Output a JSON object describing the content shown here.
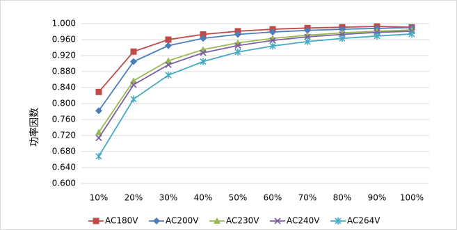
{
  "chart_data": {
    "type": "line",
    "title": "",
    "xlabel": "",
    "ylabel": "功率因数",
    "categories": [
      "10%",
      "20%",
      "30%",
      "40%",
      "50%",
      "60%",
      "70%",
      "80%",
      "90%",
      "100%"
    ],
    "ylim": [
      0.6,
      1.0
    ],
    "yticks": [
      "0.600",
      "0.640",
      "0.680",
      "0.720",
      "0.760",
      "0.800",
      "0.840",
      "0.880",
      "0.920",
      "0.960",
      "1.000"
    ],
    "grid": true,
    "legend_position": "bottom",
    "series": [
      {
        "name": "AC180V",
        "color": "#BE4B48",
        "marker": "square",
        "values": [
          0.829,
          0.93,
          0.96,
          0.973,
          0.981,
          0.986,
          0.989,
          0.991,
          0.993,
          0.991
        ]
      },
      {
        "name": "AC200V",
        "color": "#4A7EBB",
        "marker": "diamond",
        "values": [
          0.782,
          0.905,
          0.945,
          0.963,
          0.973,
          0.979,
          0.983,
          0.986,
          0.988,
          0.99
        ]
      },
      {
        "name": "AC230V",
        "color": "#98B954",
        "marker": "triangle",
        "values": [
          0.728,
          0.857,
          0.907,
          0.935,
          0.952,
          0.963,
          0.971,
          0.977,
          0.981,
          0.984
        ]
      },
      {
        "name": "AC240V",
        "color": "#7D60A0",
        "marker": "x",
        "values": [
          0.714,
          0.847,
          0.897,
          0.927,
          0.945,
          0.958,
          0.967,
          0.973,
          0.978,
          0.981
        ]
      },
      {
        "name": "AC264V",
        "color": "#46AAC5",
        "marker": "star",
        "values": [
          0.668,
          0.811,
          0.871,
          0.905,
          0.929,
          0.944,
          0.955,
          0.963,
          0.969,
          0.974
        ]
      }
    ]
  }
}
